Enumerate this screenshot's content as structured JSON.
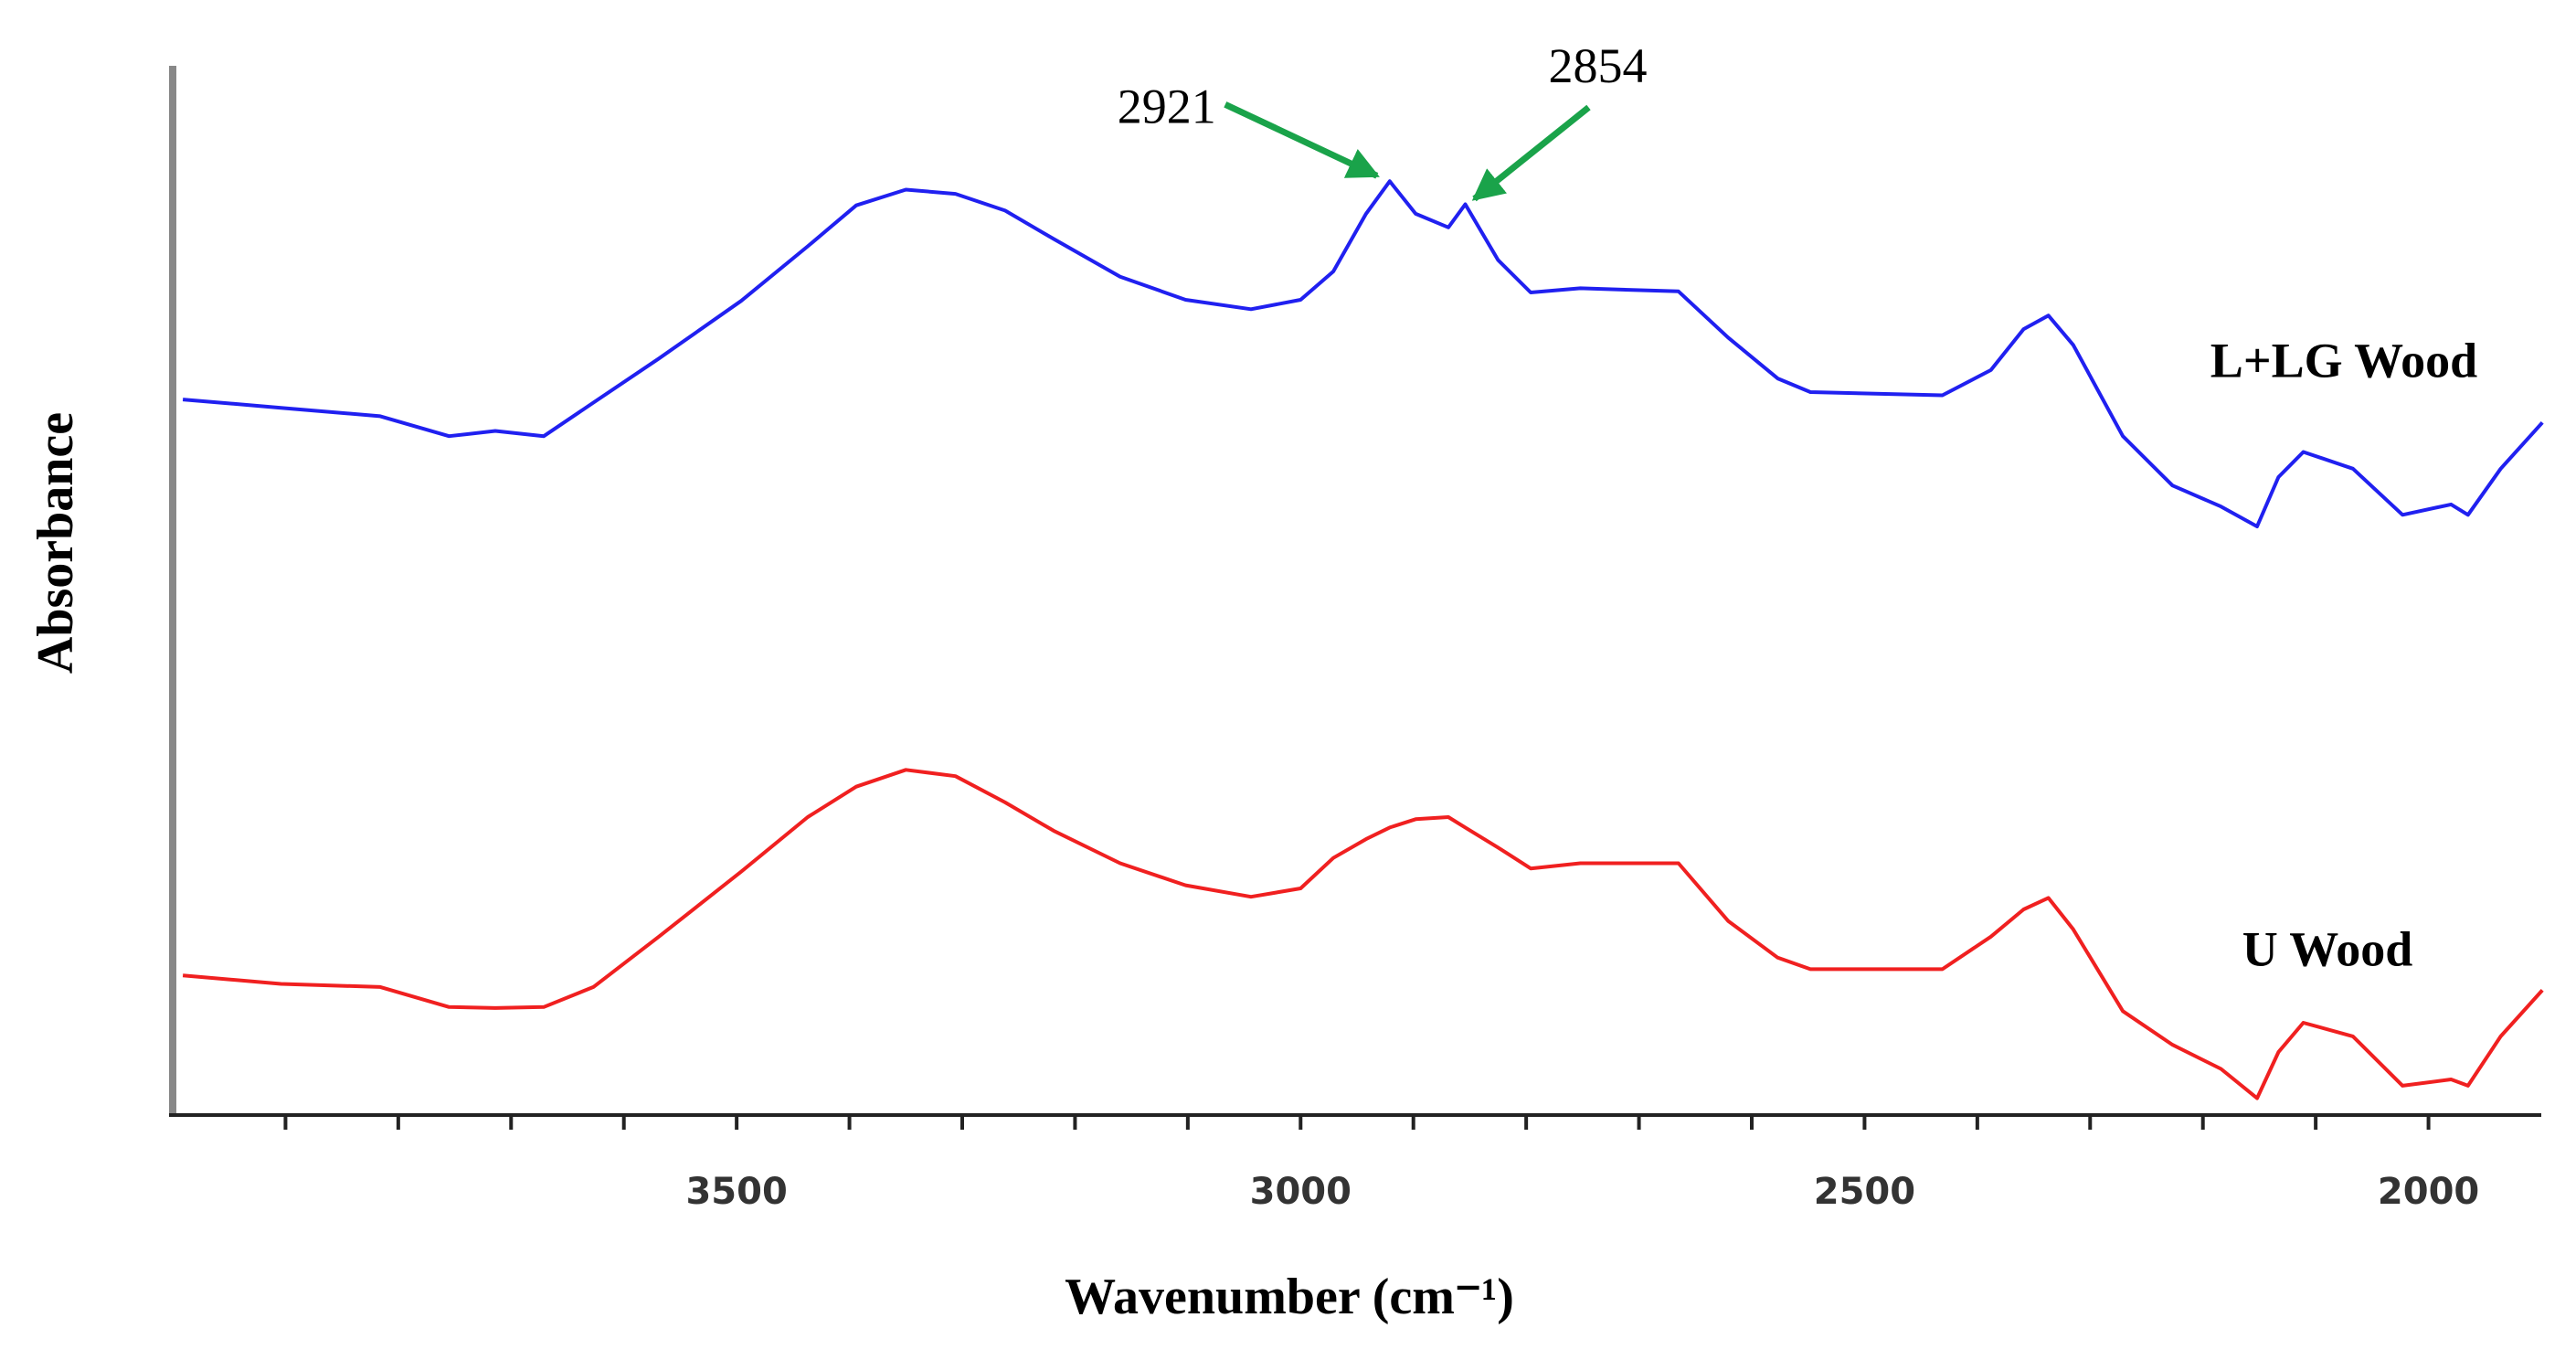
{
  "chart_data": {
    "type": "line",
    "x_label": "Wavenumber (cm⁻¹)",
    "y_label": "Absorbance",
    "x": [
      3991,
      3904,
      3816,
      3755,
      3714,
      3671,
      3627,
      3569,
      3496,
      3437,
      3394,
      3350,
      3306,
      3262,
      3219,
      3160,
      3102,
      3044,
      3000,
      2971,
      2942,
      2921,
      2898,
      2869,
      2854,
      2825,
      2796,
      2752,
      2665,
      2621,
      2577,
      2548,
      2431,
      2388,
      2359,
      2337,
      2315,
      2271,
      2227,
      2184,
      2152,
      2133,
      2111,
      2067,
      2023,
      1980,
      1965,
      1936,
      1899
    ],
    "series": [
      {
        "name": "L+LG Wood",
        "color": "#2020f0",
        "values": [
          68.2,
          67.4,
          66.6,
          64.7,
          65.2,
          64.7,
          67.9,
          72.1,
          77.6,
          82.8,
          86.7,
          88.2,
          87.8,
          86.2,
          83.5,
          79.9,
          77.7,
          76.8,
          77.7,
          80.4,
          85.9,
          89.0,
          85.9,
          84.6,
          86.8,
          81.5,
          78.4,
          78.8,
          78.5,
          74.1,
          70.2,
          68.9,
          68.6,
          71.0,
          74.9,
          76.2,
          73.4,
          64.7,
          60.0,
          58.0,
          56.1,
          60.8,
          63.2,
          61.6,
          57.2,
          58.2,
          57.2,
          61.6,
          66.0
        ]
      },
      {
        "name": "U Wood",
        "color": "#f02020",
        "values": [
          13.3,
          12.5,
          12.2,
          10.3,
          10.2,
          10.3,
          12.2,
          17.0,
          23.2,
          28.4,
          31.3,
          32.9,
          32.3,
          29.8,
          27.1,
          24.0,
          21.9,
          20.8,
          21.6,
          24.5,
          26.3,
          27.4,
          28.2,
          28.4,
          27.4,
          25.5,
          23.5,
          24.0,
          24.0,
          18.5,
          15.0,
          13.9,
          13.9,
          17.0,
          19.6,
          20.7,
          17.7,
          9.9,
          6.7,
          4.4,
          1.6,
          6.0,
          8.8,
          7.5,
          2.8,
          3.4,
          2.8,
          7.5,
          11.9
        ]
      }
    ],
    "xlim": [
      4000,
      1900
    ],
    "ylim": [
      0,
      100
    ],
    "xticks": [
      3500,
      3000,
      2500,
      2000
    ],
    "xticks_minor": [
      3900,
      3800,
      3700,
      3600,
      3400,
      3300,
      3200,
      3100,
      2900,
      2800,
      2700,
      2600,
      2400,
      2300,
      2200,
      2100
    ],
    "annotations": [
      {
        "x": 2921,
        "y": 89.0,
        "label": "2921"
      },
      {
        "x": 2854,
        "y": 86.8,
        "label": "2854"
      }
    ]
  }
}
